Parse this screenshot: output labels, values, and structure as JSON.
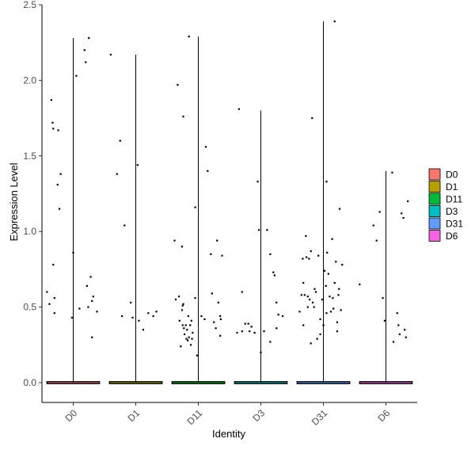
{
  "chart_data": {
    "type": "violin",
    "xlabel": "Identity",
    "ylabel": "Expression Level",
    "ylim": [
      0,
      2.5
    ],
    "y_ticks": [
      "0.0",
      "0.5",
      "1.0",
      "1.5",
      "2.0",
      "2.5"
    ],
    "categories": [
      "D0",
      "D1",
      "D11",
      "D3",
      "D31",
      "D6"
    ],
    "legend_position": "right",
    "grid": false,
    "series": [
      {
        "name": "D0",
        "color": "#F8766D",
        "max": 2.28,
        "points": [
          [
            -0.42,
            0.6
          ],
          [
            -0.38,
            0.52
          ],
          [
            -0.35,
            1.87
          ],
          [
            -0.33,
            1.72
          ],
          [
            -0.32,
            1.68
          ],
          [
            -0.3,
            0.56
          ],
          [
            -0.3,
            0.46
          ],
          [
            -0.25,
            1.31
          ],
          [
            -0.24,
            1.67
          ],
          [
            -0.22,
            1.15
          ],
          [
            -0.2,
            1.38
          ],
          [
            -0.32,
            0.78
          ],
          [
            0.0,
            0.86
          ],
          [
            -0.02,
            0.43
          ],
          [
            0.05,
            2.03
          ],
          [
            0.1,
            0.49
          ],
          [
            0.18,
            2.2
          ],
          [
            0.2,
            2.12
          ],
          [
            0.25,
            2.28
          ],
          [
            0.22,
            0.64
          ],
          [
            0.24,
            0.5
          ],
          [
            0.28,
            0.7
          ],
          [
            0.3,
            0.54
          ],
          [
            0.32,
            0.57
          ],
          [
            0.3,
            0.3
          ],
          [
            0.38,
            0.47
          ]
        ]
      },
      {
        "name": "D1",
        "color": "#B79F00",
        "max": 2.17,
        "points": [
          [
            -0.4,
            2.17
          ],
          [
            -0.3,
            1.38
          ],
          [
            -0.25,
            1.6
          ],
          [
            -0.22,
            0.44
          ],
          [
            -0.18,
            1.04
          ],
          [
            -0.08,
            0.53
          ],
          [
            -0.05,
            0.43
          ],
          [
            0.03,
            1.44
          ],
          [
            0.05,
            0.41
          ],
          [
            0.12,
            0.35
          ],
          [
            0.2,
            0.46
          ],
          [
            0.28,
            0.44
          ],
          [
            0.33,
            0.47
          ]
        ]
      },
      {
        "name": "D11",
        "color": "#00BA38",
        "max": 2.29,
        "points": [
          [
            -0.38,
            0.94
          ],
          [
            -0.36,
            0.55
          ],
          [
            -0.33,
            1.97
          ],
          [
            -0.31,
            0.57
          ],
          [
            -0.3,
            0.41
          ],
          [
            -0.26,
            0.48
          ],
          [
            -0.25,
            0.38
          ],
          [
            -0.24,
            0.52
          ],
          [
            -0.23,
            0.36
          ],
          [
            -0.22,
            0.32
          ],
          [
            -0.2,
            0.38
          ],
          [
            -0.19,
            0.29
          ],
          [
            -0.18,
            0.35
          ],
          [
            -0.17,
            0.28
          ],
          [
            -0.16,
            0.44
          ],
          [
            -0.15,
            0.3
          ],
          [
            -0.13,
            0.38
          ],
          [
            -0.12,
            0.25
          ],
          [
            -0.11,
            0.41
          ],
          [
            -0.1,
            0.29
          ],
          [
            -0.09,
            0.33
          ],
          [
            -0.28,
            0.24
          ],
          [
            -0.24,
            1.76
          ],
          [
            -0.26,
            0.9
          ],
          [
            -0.25,
            0.51
          ],
          [
            -0.15,
            2.29
          ],
          [
            -0.05,
            1.16
          ],
          [
            -0.02,
            0.18
          ],
          [
            -0.05,
            0.56
          ],
          [
            0.05,
            0.44
          ],
          [
            0.1,
            0.42
          ],
          [
            0.12,
            1.56
          ],
          [
            0.15,
            1.4
          ],
          [
            0.2,
            0.85
          ],
          [
            0.22,
            0.59
          ],
          [
            0.25,
            0.4
          ],
          [
            0.28,
            0.36
          ],
          [
            0.3,
            0.94
          ],
          [
            0.32,
            0.53
          ],
          [
            0.35,
            0.31
          ],
          [
            0.36,
            0.42
          ],
          [
            0.38,
            0.84
          ],
          [
            0.35,
            0.44
          ]
        ]
      },
      {
        "name": "D3",
        "color": "#00BFC4",
        "max": 1.8,
        "points": [
          [
            -0.3,
            0.6
          ],
          [
            -0.35,
            1.81
          ],
          [
            -0.38,
            0.33
          ],
          [
            -0.3,
            0.34
          ],
          [
            -0.25,
            0.39
          ],
          [
            -0.2,
            0.39
          ],
          [
            -0.18,
            0.34
          ],
          [
            -0.15,
            0.37
          ],
          [
            -0.1,
            0.33
          ],
          [
            -0.05,
            1.33
          ],
          [
            -0.03,
            1.01
          ],
          [
            0.0,
            0.2
          ],
          [
            0.05,
            0.34
          ],
          [
            0.1,
            1.01
          ],
          [
            0.15,
            0.27
          ],
          [
            0.15,
            0.85
          ],
          [
            0.2,
            0.73
          ],
          [
            0.22,
            0.71
          ],
          [
            0.25,
            0.53
          ],
          [
            0.28,
            0.45
          ],
          [
            0.35,
            0.44
          ],
          [
            0.25,
            0.36
          ]
        ]
      },
      {
        "name": "D31",
        "color": "#619CFF",
        "max": 2.39,
        "points": [
          [
            -0.38,
            0.47
          ],
          [
            -0.35,
            0.58
          ],
          [
            -0.33,
            0.82
          ],
          [
            -0.32,
            0.38
          ],
          [
            -0.3,
            0.58
          ],
          [
            -0.28,
            0.97
          ],
          [
            -0.27,
            0.83
          ],
          [
            -0.25,
            0.5
          ],
          [
            -0.23,
            0.82
          ],
          [
            -0.22,
            0.55
          ],
          [
            -0.2,
            0.87
          ],
          [
            -0.18,
            1.75
          ],
          [
            -0.17,
            0.53
          ],
          [
            -0.15,
            0.5
          ],
          [
            -0.12,
            0.6
          ],
          [
            -0.1,
            0.29
          ],
          [
            -0.08,
            0.84
          ],
          [
            -0.05,
            0.42
          ],
          [
            -0.02,
            0.55
          ],
          [
            0.0,
            0.38
          ],
          [
            0.02,
            0.74
          ],
          [
            0.04,
            0.64
          ],
          [
            0.05,
            1.33
          ],
          [
            0.06,
            0.86
          ],
          [
            0.08,
            0.72
          ],
          [
            0.1,
            0.57
          ],
          [
            0.12,
            0.47
          ],
          [
            0.14,
            0.95
          ],
          [
            0.16,
            0.49
          ],
          [
            0.18,
            0.66
          ],
          [
            0.2,
            0.8
          ],
          [
            0.22,
            0.34
          ],
          [
            0.24,
            0.58
          ],
          [
            0.25,
            0.62
          ],
          [
            0.26,
            1.15
          ],
          [
            0.28,
            0.48
          ],
          [
            0.3,
            0.78
          ],
          [
            0.22,
            0.4
          ],
          [
            -0.2,
            0.26
          ],
          [
            -0.25,
            0.57
          ],
          [
            -0.32,
            0.66
          ],
          [
            -0.14,
            0.62
          ],
          [
            0.18,
            2.39
          ],
          [
            -0.05,
            0.32
          ],
          [
            0.05,
            0.46
          ],
          [
            0.15,
            0.56
          ]
        ]
      },
      {
        "name": "D6",
        "color": "#F564E3",
        "max": 1.4,
        "points": [
          [
            -0.42,
            0.65
          ],
          [
            -0.2,
            1.04
          ],
          [
            -0.15,
            0.94
          ],
          [
            -0.1,
            1.13
          ],
          [
            -0.05,
            0.56
          ],
          [
            -0.02,
            0.41
          ],
          [
            0.1,
            1.39
          ],
          [
            0.12,
            0.27
          ],
          [
            0.18,
            0.46
          ],
          [
            0.2,
            0.38
          ],
          [
            0.22,
            0.32
          ],
          [
            0.25,
            1.12
          ],
          [
            0.28,
            1.09
          ],
          [
            0.3,
            0.35
          ],
          [
            0.32,
            0.3
          ],
          [
            0.35,
            1.2
          ]
        ]
      }
    ]
  }
}
